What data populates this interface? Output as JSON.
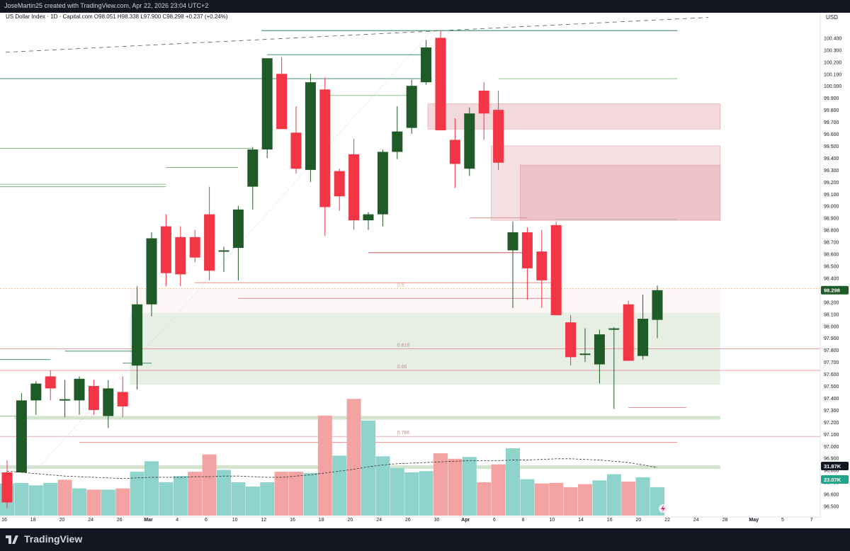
{
  "header": {
    "creator_line": "JoseMartin25 created with TradingView.com, Apr 22, 2026 23:04 UTC+2",
    "instrument_line": "US Dollar Index · 1D · Capital.com  O98.051  H98.338  L97.900  C98.298  +0.237 (+0.24%)"
  },
  "footer": {
    "brand": "TradingView",
    "logo_icon": "tradingview-logo-icon"
  },
  "colors": {
    "up": "#1e5b26",
    "down": "#f23645",
    "vol_up": "#8fd4cc",
    "vol_down": "#f4a3a3",
    "resistance_zone": "#e7b3b8",
    "support_zone": "#c9dcc4",
    "fib_line": "#f4a3a3",
    "level_line": "#2e7d5b"
  },
  "chart_data": {
    "type": "candlestick",
    "currency_label": "USD",
    "ylim": [
      96.45,
      100.55
    ],
    "y_ticks": [
      96.5,
      96.6,
      96.7,
      96.8,
      96.9,
      97.0,
      97.1,
      97.2,
      97.3,
      97.4,
      97.5,
      97.6,
      97.7,
      97.8,
      97.9,
      98.0,
      98.1,
      98.2,
      98.3,
      98.4,
      98.5,
      98.6,
      98.7,
      98.8,
      98.9,
      99.0,
      99.1,
      99.2,
      99.3,
      99.4,
      99.5,
      99.6,
      99.7,
      99.8,
      99.9,
      100.0,
      100.1,
      100.2,
      100.3,
      100.4
    ],
    "x_ticks": [
      "16",
      "18",
      "20",
      "24",
      "26",
      "Mar",
      "4",
      "6",
      "10",
      "12",
      "16",
      "18",
      "20",
      "24",
      "26",
      "30",
      "Apr",
      "6",
      "8",
      "10",
      "14",
      "16",
      "20",
      "22",
      "24",
      "28",
      "May",
      "5",
      "7"
    ],
    "candles": [
      {
        "o": 96.78,
        "h": 96.88,
        "l": 96.48,
        "c": 96.53
      },
      {
        "o": 96.78,
        "h": 97.44,
        "l": 96.78,
        "c": 97.38
      },
      {
        "o": 97.38,
        "h": 97.54,
        "l": 97.26,
        "c": 97.52
      },
      {
        "o": 97.58,
        "h": 97.63,
        "l": 97.38,
        "c": 97.48
      },
      {
        "o": 97.39,
        "h": 97.55,
        "l": 97.24,
        "c": 97.39
      },
      {
        "o": 97.38,
        "h": 97.58,
        "l": 97.26,
        "c": 97.56
      },
      {
        "o": 97.5,
        "h": 97.55,
        "l": 97.26,
        "c": 97.3
      },
      {
        "o": 97.25,
        "h": 97.55,
        "l": 97.15,
        "c": 97.48
      },
      {
        "o": 97.45,
        "h": 97.58,
        "l": 97.24,
        "c": 97.33
      },
      {
        "o": 97.67,
        "h": 98.33,
        "l": 97.47,
        "c": 98.18
      },
      {
        "o": 98.18,
        "h": 98.78,
        "l": 98.08,
        "c": 98.73
      },
      {
        "o": 98.83,
        "h": 98.93,
        "l": 98.33,
        "c": 98.44
      },
      {
        "o": 98.74,
        "h": 98.83,
        "l": 98.33,
        "c": 98.43
      },
      {
        "o": 98.74,
        "h": 98.8,
        "l": 98.53,
        "c": 98.57
      },
      {
        "o": 98.93,
        "h": 99.16,
        "l": 98.38,
        "c": 98.46
      },
      {
        "o": 98.63,
        "h": 98.66,
        "l": 98.45,
        "c": 98.63
      },
      {
        "o": 98.65,
        "h": 99.0,
        "l": 98.38,
        "c": 98.97
      },
      {
        "o": 99.16,
        "h": 99.49,
        "l": 98.97,
        "c": 99.47
      },
      {
        "o": 99.47,
        "h": 100.23,
        "l": 99.4,
        "c": 100.23
      },
      {
        "o": 100.1,
        "h": 100.24,
        "l": 99.64,
        "c": 99.64
      },
      {
        "o": 99.61,
        "h": 99.83,
        "l": 99.27,
        "c": 99.31
      },
      {
        "o": 99.3,
        "h": 100.1,
        "l": 99.2,
        "c": 100.03
      },
      {
        "o": 99.97,
        "h": 100.07,
        "l": 98.75,
        "c": 98.99
      },
      {
        "o": 99.29,
        "h": 99.31,
        "l": 98.96,
        "c": 99.08
      },
      {
        "o": 99.43,
        "h": 99.56,
        "l": 98.8,
        "c": 98.88
      },
      {
        "o": 98.88,
        "h": 98.95,
        "l": 98.8,
        "c": 98.93
      },
      {
        "o": 98.93,
        "h": 99.47,
        "l": 98.83,
        "c": 99.45
      },
      {
        "o": 99.45,
        "h": 99.83,
        "l": 99.39,
        "c": 99.62
      },
      {
        "o": 99.65,
        "h": 100.05,
        "l": 99.6,
        "c": 100.0
      },
      {
        "o": 100.03,
        "h": 100.38,
        "l": 100.01,
        "c": 100.32
      },
      {
        "o": 100.4,
        "h": 100.46,
        "l": 99.66,
        "c": 99.63
      },
      {
        "o": 99.55,
        "h": 99.73,
        "l": 99.15,
        "c": 99.35
      },
      {
        "o": 99.31,
        "h": 99.82,
        "l": 99.25,
        "c": 99.77
      },
      {
        "o": 99.96,
        "h": 100.03,
        "l": 99.55,
        "c": 99.77
      },
      {
        "o": 99.8,
        "h": 99.96,
        "l": 99.3,
        "c": 99.36
      },
      {
        "o": 98.63,
        "h": 98.87,
        "l": 98.15,
        "c": 98.78
      },
      {
        "o": 98.78,
        "h": 98.82,
        "l": 98.22,
        "c": 98.48
      },
      {
        "o": 98.62,
        "h": 98.8,
        "l": 98.15,
        "c": 98.38
      },
      {
        "o": 98.84,
        "h": 98.87,
        "l": 98.09,
        "c": 98.09
      },
      {
        "o": 98.03,
        "h": 98.09,
        "l": 97.67,
        "c": 97.74
      },
      {
        "o": 97.77,
        "h": 97.98,
        "l": 97.7,
        "c": 97.77
      },
      {
        "o": 97.68,
        "h": 97.97,
        "l": 97.52,
        "c": 97.93
      },
      {
        "o": 97.98,
        "h": 97.99,
        "l": 97.31,
        "c": 97.98
      },
      {
        "o": 98.18,
        "h": 98.21,
        "l": 97.71,
        "c": 97.71
      },
      {
        "o": 97.75,
        "h": 98.26,
        "l": 97.72,
        "c": 98.06
      },
      {
        "o": 98.051,
        "h": 98.338,
        "l": 97.9,
        "c": 98.298
      }
    ],
    "volume": [
      {
        "v": 0.52,
        "up": true
      },
      {
        "v": 0.53,
        "up": true
      },
      {
        "v": 0.49,
        "up": true
      },
      {
        "v": 0.53,
        "up": true
      },
      {
        "v": 0.58,
        "up": false
      },
      {
        "v": 0.44,
        "up": true
      },
      {
        "v": 0.42,
        "up": false
      },
      {
        "v": 0.42,
        "up": true
      },
      {
        "v": 0.44,
        "up": false
      },
      {
        "v": 0.71,
        "up": true
      },
      {
        "v": 0.88,
        "up": true
      },
      {
        "v": 0.54,
        "up": true
      },
      {
        "v": 0.64,
        "up": true
      },
      {
        "v": 0.71,
        "up": false
      },
      {
        "v": 0.99,
        "up": false
      },
      {
        "v": 0.74,
        "up": true
      },
      {
        "v": 0.54,
        "up": true
      },
      {
        "v": 0.47,
        "up": true
      },
      {
        "v": 0.54,
        "up": true
      },
      {
        "v": 0.71,
        "up": false
      },
      {
        "v": 0.71,
        "up": false
      },
      {
        "v": 0.69,
        "up": true
      },
      {
        "v": 1.62,
        "up": false
      },
      {
        "v": 0.97,
        "up": true
      },
      {
        "v": 1.89,
        "up": false
      },
      {
        "v": 1.54,
        "up": true
      },
      {
        "v": 0.96,
        "up": true
      },
      {
        "v": 0.77,
        "up": true
      },
      {
        "v": 0.7,
        "up": true
      },
      {
        "v": 0.72,
        "up": true
      },
      {
        "v": 1.01,
        "up": false
      },
      {
        "v": 0.92,
        "up": false
      },
      {
        "v": 0.95,
        "up": true
      },
      {
        "v": 0.54,
        "up": false
      },
      {
        "v": 0.83,
        "up": false
      },
      {
        "v": 1.09,
        "up": true
      },
      {
        "v": 0.59,
        "up": true
      },
      {
        "v": 0.52,
        "up": false
      },
      {
        "v": 0.53,
        "up": false
      },
      {
        "v": 0.46,
        "up": false
      },
      {
        "v": 0.51,
        "up": false
      },
      {
        "v": 0.57,
        "up": true
      },
      {
        "v": 0.67,
        "up": true
      },
      {
        "v": 0.55,
        "up": false
      },
      {
        "v": 0.62,
        "up": true
      },
      {
        "v": 0.46,
        "up": true
      }
    ],
    "volume_ma": [
      0.72,
      0.7,
      0.68,
      0.66,
      0.64,
      0.63,
      0.62,
      0.61,
      0.6,
      0.61,
      0.62,
      0.62,
      0.62,
      0.63,
      0.63,
      0.64,
      0.64,
      0.63,
      0.62,
      0.62,
      0.64,
      0.66,
      0.69,
      0.72,
      0.75,
      0.79,
      0.82,
      0.84,
      0.85,
      0.86,
      0.87,
      0.88,
      0.89,
      0.89,
      0.89,
      0.9,
      0.9,
      0.91,
      0.92,
      0.92,
      0.91,
      0.9,
      0.88,
      0.86,
      0.82,
      0.78
    ],
    "zones": [
      {
        "kind": "resistance",
        "from": 97,
        "to": 42,
        "y_low": 99.64,
        "y_high": 99.85,
        "opacity": 0.5
      },
      {
        "kind": "resistance",
        "from": 34,
        "to": 42,
        "y_low": 98.88,
        "y_high": 99.5,
        "opacity": 0.4
      },
      {
        "kind": "resistance",
        "from": 36,
        "to": 42,
        "y_low": 98.88,
        "y_high": 99.34,
        "opacity": 0.6
      },
      {
        "kind": "support",
        "from": 9,
        "to": 42,
        "y_low": 97.51,
        "y_high": 98.11,
        "opacity": 0.45
      },
      {
        "kind": "pale",
        "from": 9,
        "to": 42,
        "y_low": 98.11,
        "y_high": 98.31,
        "opacity": 0.2
      },
      {
        "kind": "support",
        "from": 1,
        "to": 42,
        "y_low": 97.22,
        "y_high": 97.25,
        "opacity": 0.8
      },
      {
        "kind": "support",
        "from": 0,
        "to": 42,
        "y_low": 96.81,
        "y_high": 96.84,
        "opacity": 0.8
      }
    ],
    "fib_levels": [
      {
        "label": "0.5",
        "y": 98.31,
        "color": "#f2a93b"
      },
      {
        "label": "0.618",
        "y": 97.81,
        "color": "#e08080"
      },
      {
        "label": "0.66",
        "y": 97.63,
        "color": "#e08080"
      },
      {
        "label": "0.786",
        "y": 97.08,
        "color": "#e08080"
      }
    ],
    "volume_labels": [
      {
        "value": "31.87K",
        "color": "#131722",
        "text_color": "#ffffff"
      },
      {
        "value": "23.07K",
        "color": "#20a58a",
        "text_color": "#ffffff"
      }
    ],
    "last_price": {
      "value": "98.298",
      "color": "#1e5b26"
    }
  }
}
